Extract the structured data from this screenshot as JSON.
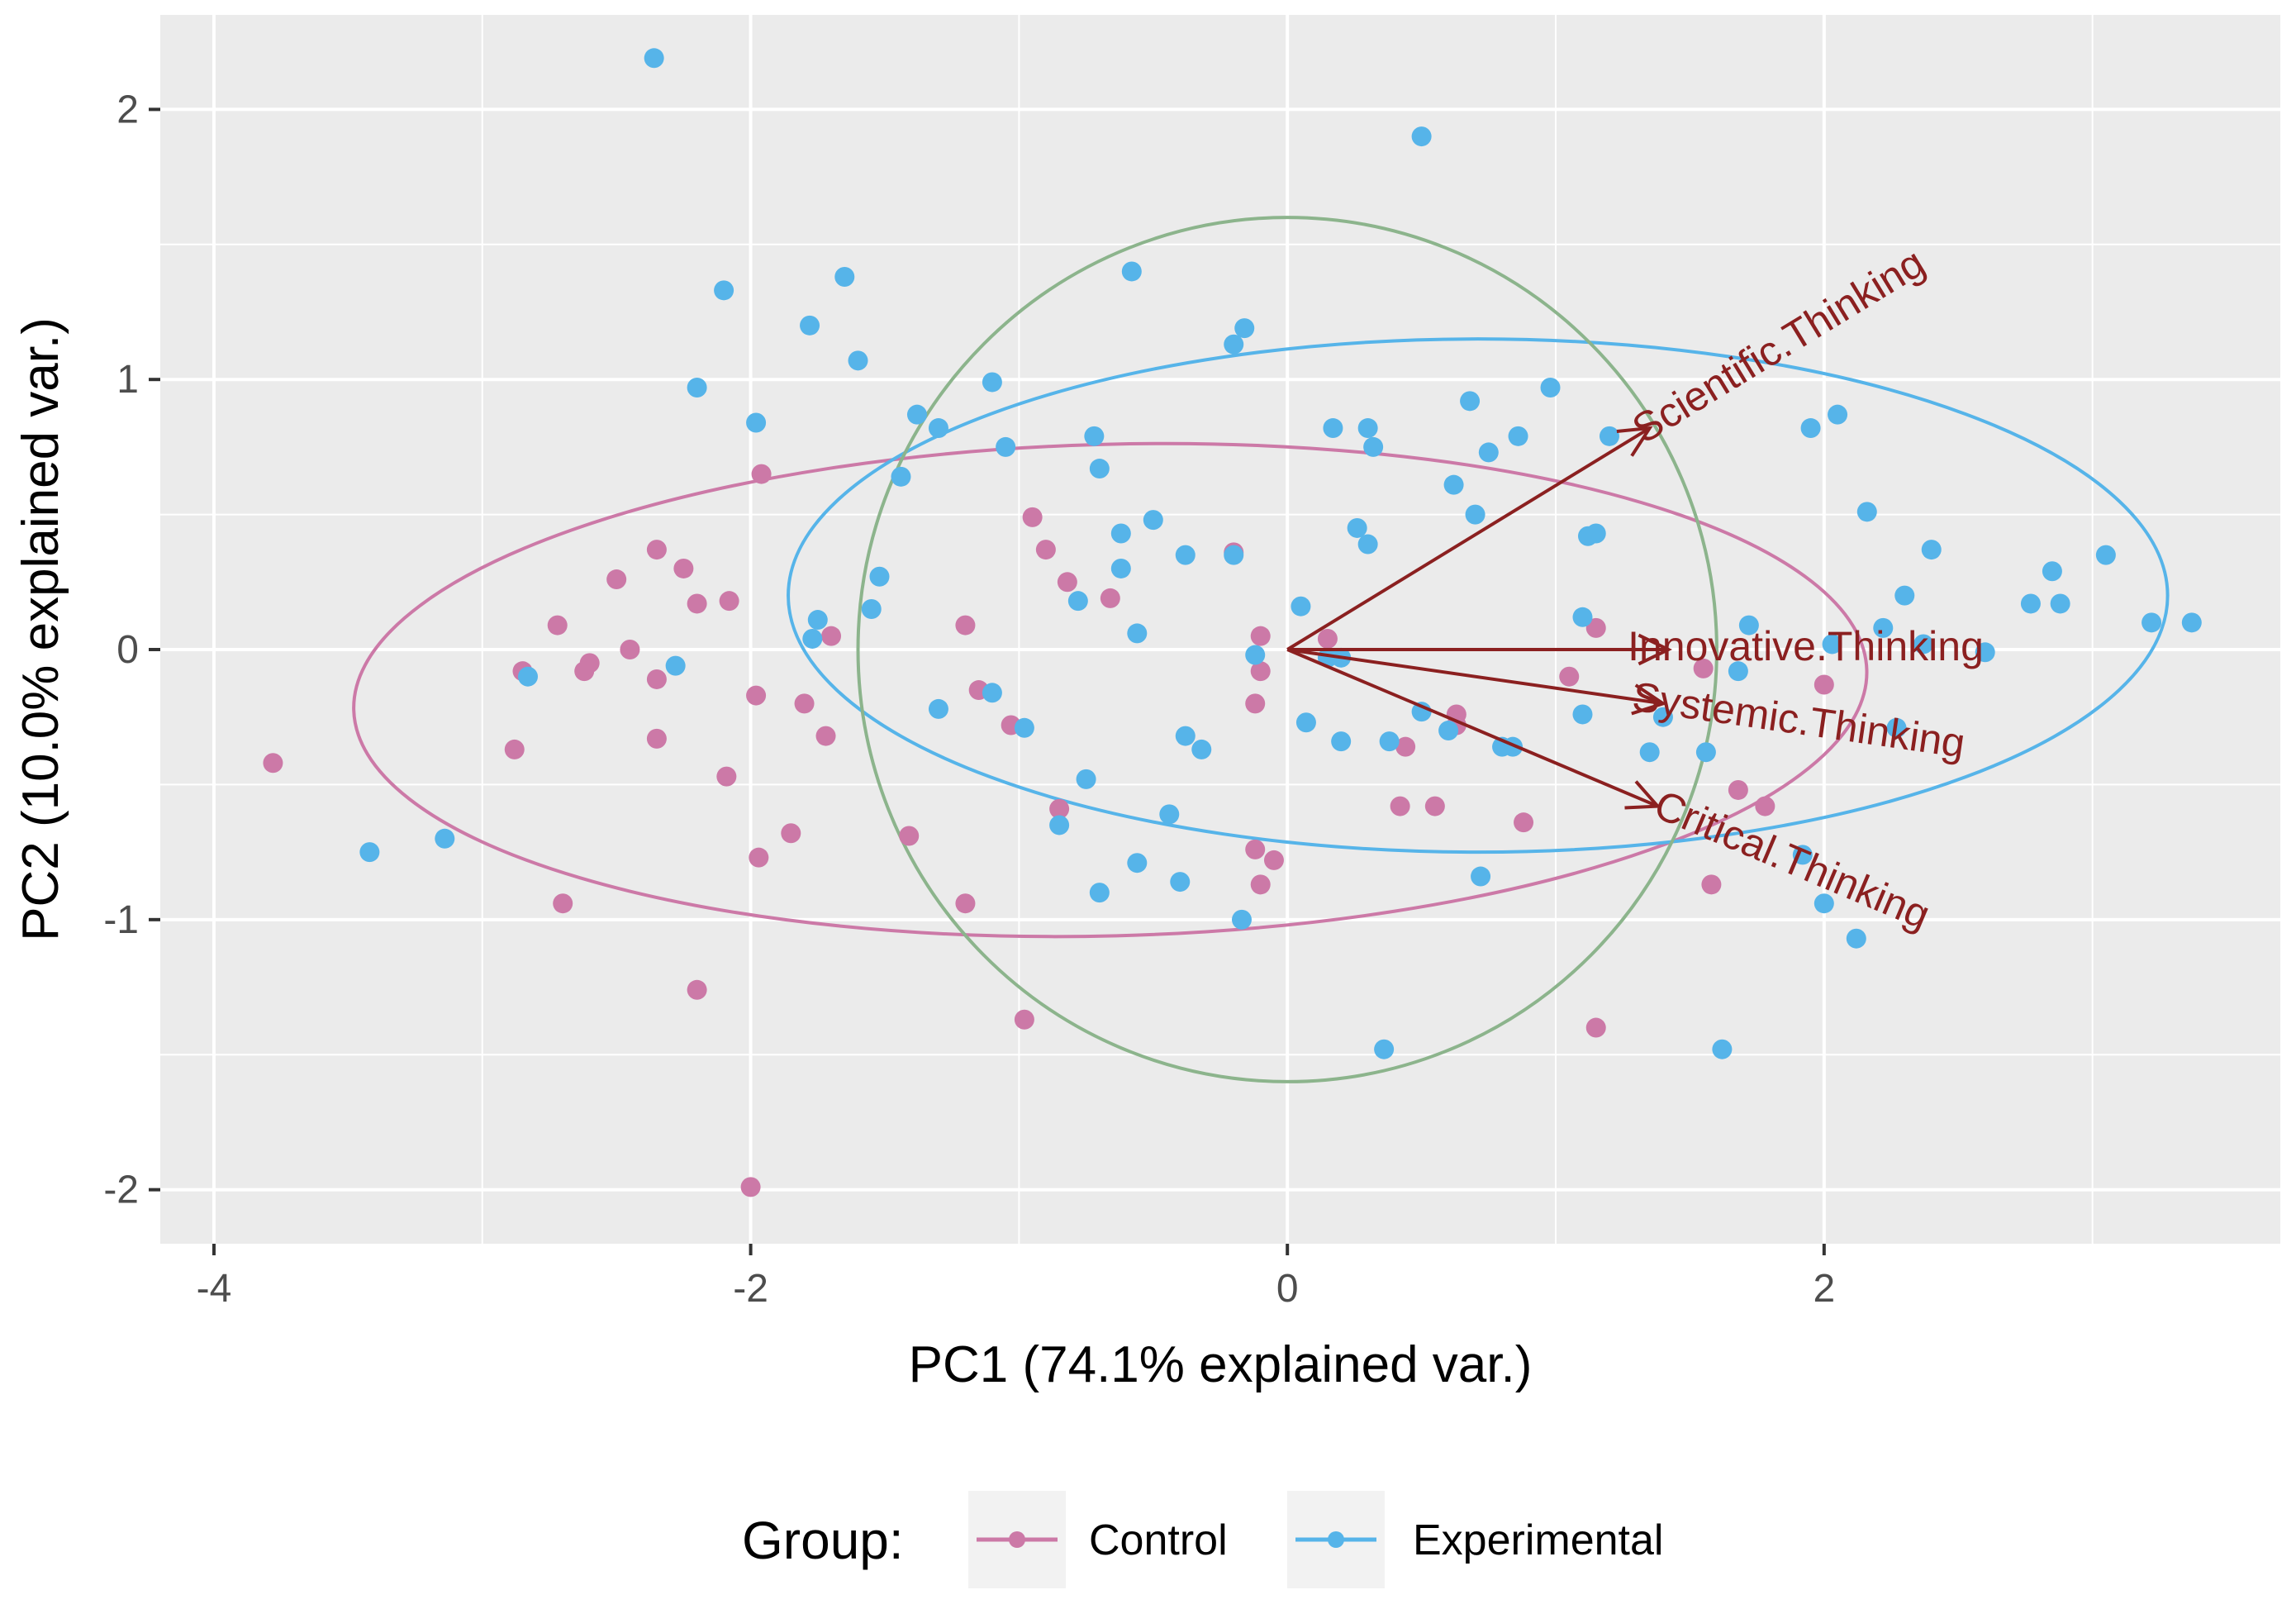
{
  "chart_data": {
    "type": "scatter",
    "subtype": "pca-biplot",
    "title": "",
    "xlabel": "PC1 (74.1% explained var.)",
    "ylabel": "PC2 (10.0% explained var.)",
    "xlim": [
      -4.2,
      3.7
    ],
    "ylim": [
      -2.2,
      2.35
    ],
    "xticks": [
      -4,
      -2,
      0,
      2
    ],
    "yticks": [
      -2,
      -1,
      0,
      1,
      2
    ],
    "xtick_labels": [
      "-4",
      "-2",
      "0",
      "2"
    ],
    "ytick_labels": [
      "-2",
      "-1",
      "0",
      "1",
      "2"
    ],
    "grid": true,
    "legend": {
      "position": "bottom",
      "title": "Group:",
      "entries": [
        {
          "label": "Control",
          "color": "#CC79A7"
        },
        {
          "label": "Experimental",
          "color": "#56B4E9"
        }
      ]
    },
    "series": [
      {
        "name": "Control",
        "color": "#CC79A7",
        "points": [
          [
            -3.78,
            -0.42
          ],
          [
            -2.35,
            0.37
          ],
          [
            -2.25,
            0.3
          ],
          [
            -2.2,
            0.17
          ],
          [
            -2.08,
            0.18
          ],
          [
            -2.09,
            -0.47
          ],
          [
            -1.96,
            0.65
          ],
          [
            -1.98,
            -0.17
          ],
          [
            -2.2,
            -1.26
          ],
          [
            -2.0,
            -1.99
          ],
          [
            -1.97,
            -0.77
          ],
          [
            -1.85,
            -0.68
          ],
          [
            -1.8,
            -0.2
          ],
          [
            -1.72,
            -0.32
          ],
          [
            -1.7,
            0.05
          ],
          [
            -2.5,
            0.26
          ],
          [
            -2.45,
            0.0
          ],
          [
            -2.6,
            -0.05
          ],
          [
            -2.62,
            -0.08
          ],
          [
            -2.7,
            -0.94
          ],
          [
            -2.72,
            0.09
          ],
          [
            -2.88,
            -0.37
          ],
          [
            -2.85,
            -0.08
          ],
          [
            -2.35,
            -0.11
          ],
          [
            -2.35,
            -0.33
          ],
          [
            -1.41,
            -0.69
          ],
          [
            -1.2,
            0.09
          ],
          [
            -1.2,
            -0.94
          ],
          [
            -1.15,
            -0.15
          ],
          [
            -1.03,
            -0.28
          ],
          [
            -0.98,
            -1.37
          ],
          [
            -0.95,
            0.49
          ],
          [
            -0.9,
            0.37
          ],
          [
            -0.85,
            -0.59
          ],
          [
            -0.82,
            0.25
          ],
          [
            -0.66,
            0.19
          ],
          [
            -0.2,
            0.36
          ],
          [
            -0.1,
            0.05
          ],
          [
            -0.1,
            -0.08
          ],
          [
            -0.12,
            -0.2
          ],
          [
            -0.12,
            -0.74
          ],
          [
            -0.1,
            -0.87
          ],
          [
            -0.05,
            -0.78
          ],
          [
            0.15,
            0.04
          ],
          [
            0.42,
            -0.58
          ],
          [
            0.55,
            -0.58
          ],
          [
            0.44,
            -0.36
          ],
          [
            0.63,
            -0.24
          ],
          [
            0.63,
            -0.28
          ],
          [
            0.88,
            -0.64
          ],
          [
            1.05,
            -0.1
          ],
          [
            1.15,
            0.08
          ],
          [
            1.15,
            -1.4
          ],
          [
            1.55,
            -0.07
          ],
          [
            1.68,
            -0.52
          ],
          [
            1.58,
            -0.87
          ],
          [
            1.78,
            -0.58
          ],
          [
            2.0,
            -0.13
          ]
        ]
      },
      {
        "name": "Experimental",
        "color": "#56B4E9",
        "points": [
          [
            -2.36,
            2.19
          ],
          [
            -2.1,
            1.33
          ],
          [
            -2.2,
            0.97
          ],
          [
            -1.98,
            0.84
          ],
          [
            -1.78,
            1.2
          ],
          [
            -1.65,
            1.38
          ],
          [
            -1.6,
            1.07
          ],
          [
            -1.44,
            0.64
          ],
          [
            -1.38,
            0.87
          ],
          [
            -1.3,
            0.82
          ],
          [
            -1.1,
            0.99
          ],
          [
            -1.05,
            0.75
          ],
          [
            -0.72,
            0.79
          ],
          [
            -0.7,
            0.67
          ],
          [
            -0.58,
            1.4
          ],
          [
            -0.5,
            0.48
          ],
          [
            -0.62,
            0.43
          ],
          [
            -0.62,
            0.3
          ],
          [
            -0.38,
            0.35
          ],
          [
            -0.2,
            0.35
          ],
          [
            -0.2,
            1.13
          ],
          [
            -0.16,
            1.19
          ],
          [
            -0.78,
            0.18
          ],
          [
            -0.56,
            0.06
          ],
          [
            -1.52,
            0.27
          ],
          [
            -1.55,
            0.15
          ],
          [
            -1.75,
            0.11
          ],
          [
            -1.77,
            0.04
          ],
          [
            -3.42,
            -0.75
          ],
          [
            -3.14,
            -0.7
          ],
          [
            -2.83,
            -0.1
          ],
          [
            -2.28,
            -0.06
          ],
          [
            -1.3,
            -0.22
          ],
          [
            -1.1,
            -0.16
          ],
          [
            -0.98,
            -0.29
          ],
          [
            -0.75,
            -0.48
          ],
          [
            -0.85,
            -0.65
          ],
          [
            -0.7,
            -0.9
          ],
          [
            -0.56,
            -0.79
          ],
          [
            -0.44,
            -0.61
          ],
          [
            -0.38,
            -0.32
          ],
          [
            -0.32,
            -0.37
          ],
          [
            -0.4,
            -0.86
          ],
          [
            -0.17,
            -1.0
          ],
          [
            -0.12,
            -0.02
          ],
          [
            0.05,
            0.16
          ],
          [
            0.17,
            0.82
          ],
          [
            0.3,
            0.82
          ],
          [
            0.32,
            0.75
          ],
          [
            0.26,
            0.45
          ],
          [
            0.3,
            0.39
          ],
          [
            0.68,
            0.92
          ],
          [
            0.86,
            0.79
          ],
          [
            0.75,
            0.73
          ],
          [
            0.62,
            0.61
          ],
          [
            0.7,
            0.5
          ],
          [
            0.98,
            0.97
          ],
          [
            1.12,
            0.42
          ],
          [
            1.15,
            0.43
          ],
          [
            1.2,
            0.79
          ],
          [
            1.1,
            0.12
          ],
          [
            0.15,
            -0.03
          ],
          [
            0.2,
            -0.03
          ],
          [
            0.07,
            -0.27
          ],
          [
            0.2,
            -0.34
          ],
          [
            0.38,
            -0.34
          ],
          [
            0.5,
            -0.23
          ],
          [
            0.6,
            -0.3
          ],
          [
            0.8,
            -0.36
          ],
          [
            0.84,
            -0.36
          ],
          [
            0.72,
            -0.84
          ],
          [
            0.36,
            -1.48
          ],
          [
            1.1,
            -0.24
          ],
          [
            1.35,
            -0.38
          ],
          [
            1.4,
            -0.25
          ],
          [
            1.56,
            -0.38
          ],
          [
            1.68,
            -0.08
          ],
          [
            1.72,
            0.09
          ],
          [
            1.95,
            0.82
          ],
          [
            2.05,
            0.87
          ],
          [
            2.16,
            0.51
          ],
          [
            2.03,
            0.02
          ],
          [
            2.22,
            0.08
          ],
          [
            2.3,
            0.2
          ],
          [
            2.4,
            0.37
          ],
          [
            2.37,
            0.02
          ],
          [
            2.6,
            -0.01
          ],
          [
            2.77,
            0.17
          ],
          [
            2.85,
            0.29
          ],
          [
            2.88,
            0.17
          ],
          [
            3.05,
            0.35
          ],
          [
            3.22,
            0.1
          ],
          [
            3.37,
            0.1
          ],
          [
            1.92,
            -0.76
          ],
          [
            2.0,
            -0.94
          ],
          [
            2.12,
            -1.07
          ],
          [
            1.62,
            -1.48
          ],
          [
            0.5,
            1.9
          ],
          [
            2.27,
            -0.29
          ]
        ]
      }
    ],
    "ellipses": [
      {
        "name": "Control",
        "color": "#CC79A7",
        "cx": -0.66,
        "cy": -0.15,
        "rx": 2.82,
        "ry": 0.91,
        "rotation_deg": 1.5
      },
      {
        "name": "Experimental",
        "color": "#56B4E9",
        "cx": 0.71,
        "cy": 0.2,
        "rx": 2.57,
        "ry": 0.95,
        "rotation_deg": 0
      },
      {
        "name": "circle",
        "color": "#8CB48C",
        "cx": 0.0,
        "cy": 0.0,
        "rx": 1.6,
        "ry": 1.6,
        "rotation_deg": 0
      }
    ],
    "vectors": [
      {
        "label": "Scientific.Thinking",
        "x": 1.35,
        "y": 0.82,
        "color": "#8B2020"
      },
      {
        "label": "Innovative.Thinking",
        "x": 1.42,
        "y": 0.0,
        "color": "#8B2020"
      },
      {
        "label": "Systemic.Thinking",
        "x": 1.4,
        "y": -0.2,
        "color": "#8B2020"
      },
      {
        "label": "Critical.Thinking",
        "x": 1.38,
        "y": -0.58,
        "color": "#8B2020"
      }
    ]
  }
}
